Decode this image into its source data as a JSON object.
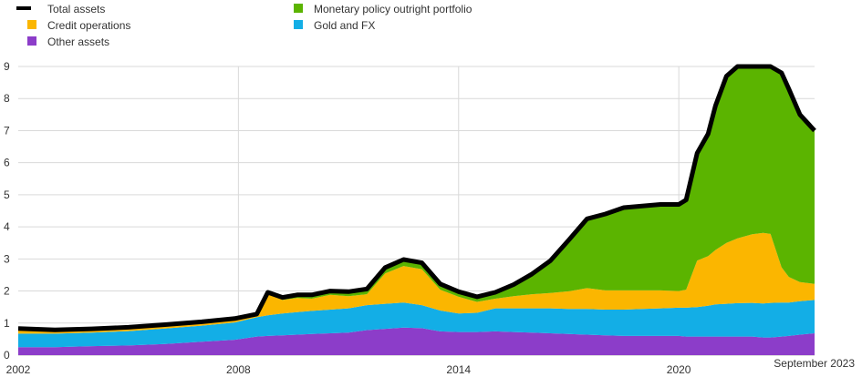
{
  "chart_data": {
    "type": "area",
    "title": "",
    "xlabel": "",
    "ylabel": "",
    "xlim": [
      2002,
      2023.7
    ],
    "ylim": [
      0,
      9
    ],
    "grid": true,
    "legend_placement": "top-left",
    "x_ticks": [
      "2002",
      "2008",
      "2014",
      "2020"
    ],
    "x_end_label": "September 2023",
    "y_ticks": [
      "0",
      "1",
      "2",
      "3",
      "4",
      "5",
      "6",
      "7",
      "8",
      "9"
    ],
    "x": [
      2002.0,
      2003.0,
      2004.0,
      2005.0,
      2006.0,
      2007.0,
      2007.9,
      2008.5,
      2008.8,
      2009.2,
      2009.6,
      2010.0,
      2010.5,
      2011.0,
      2011.5,
      2012.0,
      2012.5,
      2013.0,
      2013.5,
      2014.0,
      2014.5,
      2015.0,
      2015.5,
      2016.0,
      2016.5,
      2017.0,
      2017.5,
      2018.0,
      2018.5,
      2019.0,
      2019.5,
      2020.0,
      2020.2,
      2020.5,
      2020.8,
      2021.0,
      2021.3,
      2021.6,
      2022.0,
      2022.3,
      2022.5,
      2022.8,
      2023.0,
      2023.3,
      2023.7
    ],
    "series": [
      {
        "name": "Other assets",
        "color": "#8c3dc9",
        "values": [
          0.25,
          0.25,
          0.28,
          0.3,
          0.35,
          0.42,
          0.48,
          0.58,
          0.6,
          0.62,
          0.64,
          0.66,
          0.68,
          0.7,
          0.78,
          0.82,
          0.86,
          0.84,
          0.74,
          0.72,
          0.72,
          0.74,
          0.72,
          0.7,
          0.68,
          0.66,
          0.64,
          0.62,
          0.6,
          0.6,
          0.6,
          0.6,
          0.58,
          0.58,
          0.58,
          0.58,
          0.58,
          0.58,
          0.58,
          0.55,
          0.55,
          0.58,
          0.6,
          0.64,
          0.68
        ]
      },
      {
        "name": "Gold and FX",
        "color": "#13aee6",
        "values": [
          0.42,
          0.42,
          0.42,
          0.45,
          0.48,
          0.5,
          0.54,
          0.6,
          0.64,
          0.68,
          0.7,
          0.72,
          0.74,
          0.76,
          0.78,
          0.78,
          0.78,
          0.72,
          0.65,
          0.58,
          0.6,
          0.72,
          0.74,
          0.76,
          0.78,
          0.78,
          0.8,
          0.8,
          0.82,
          0.84,
          0.86,
          0.88,
          0.9,
          0.92,
          0.96,
          1.0,
          1.02,
          1.04,
          1.05,
          1.06,
          1.08,
          1.06,
          1.04,
          1.04,
          1.04
        ]
      },
      {
        "name": "Credit operations",
        "color": "#fbb600",
        "values": [
          0.16,
          0.12,
          0.12,
          0.12,
          0.12,
          0.12,
          0.12,
          0.1,
          0.66,
          0.42,
          0.44,
          0.38,
          0.46,
          0.38,
          0.34,
          0.95,
          1.14,
          1.12,
          0.65,
          0.52,
          0.34,
          0.3,
          0.38,
          0.44,
          0.48,
          0.55,
          0.65,
          0.6,
          0.6,
          0.58,
          0.56,
          0.52,
          0.56,
          1.45,
          1.55,
          1.7,
          1.9,
          2.02,
          2.14,
          2.2,
          2.15,
          1.1,
          0.8,
          0.6,
          0.5
        ]
      },
      {
        "name": "Monetary policy outright portfolio",
        "color": "#5bb400",
        "values": [
          0.0,
          0.0,
          0.0,
          0.0,
          0.0,
          0.0,
          0.0,
          0.0,
          0.06,
          0.08,
          0.1,
          0.12,
          0.12,
          0.14,
          0.16,
          0.18,
          0.2,
          0.2,
          0.18,
          0.16,
          0.16,
          0.2,
          0.36,
          0.63,
          1.0,
          1.6,
          2.16,
          2.38,
          2.58,
          2.63,
          2.68,
          2.7,
          2.8,
          3.35,
          3.81,
          4.5,
          5.2,
          5.66,
          5.93,
          6.19,
          6.02,
          6.06,
          5.86,
          5.22,
          4.78
        ]
      }
    ],
    "total_assets": {
      "name": "Total assets",
      "color": "#000000",
      "values": [
        0.83,
        0.79,
        0.82,
        0.87,
        0.95,
        1.04,
        1.14,
        1.28,
        1.96,
        1.8,
        1.88,
        1.88,
        2.0,
        1.98,
        2.06,
        2.73,
        2.98,
        2.88,
        2.22,
        1.98,
        1.82,
        1.96,
        2.2,
        2.53,
        2.94,
        3.59,
        4.25,
        4.4,
        4.6,
        4.65,
        4.7,
        4.7,
        4.84,
        6.3,
        6.9,
        7.78,
        8.7,
        9.3,
        9.7,
        10.0,
        9.8,
        8.8,
        8.3,
        7.5,
        7.0
      ]
    }
  },
  "legend": [
    {
      "label": "Total assets",
      "color": "#000000",
      "kind": "line"
    },
    {
      "label": "Credit operations",
      "color": "#fbb600",
      "kind": "box"
    },
    {
      "label": "Other assets",
      "color": "#8c3dc9",
      "kind": "box"
    },
    {
      "label": "Monetary policy outright portfolio",
      "color": "#5bb400",
      "kind": "box"
    },
    {
      "label": "Gold and FX",
      "color": "#13aee6",
      "kind": "box"
    }
  ]
}
